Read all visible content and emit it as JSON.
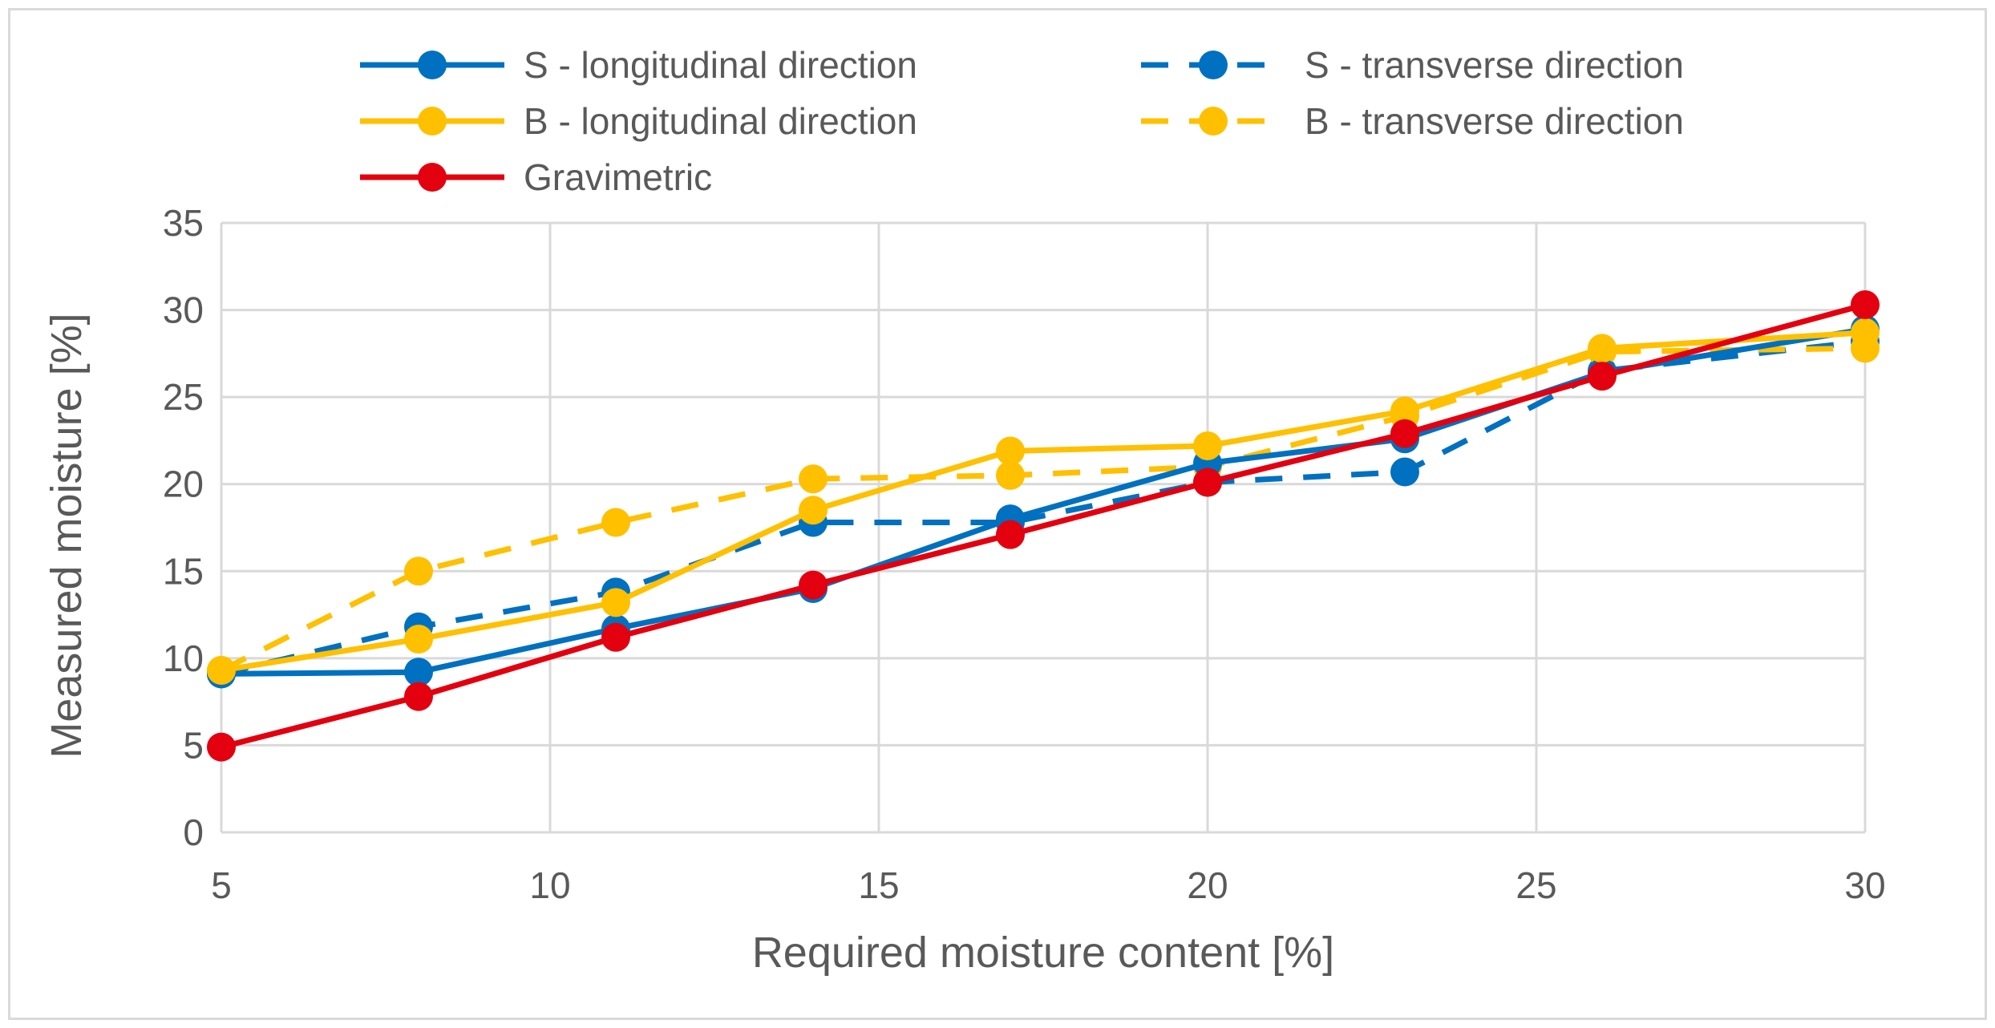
{
  "chart_data": {
    "type": "line",
    "title": "",
    "xlabel": "Required moisture content [%]",
    "ylabel": "Measured moisture [%]",
    "xlim": [
      5,
      30
    ],
    "ylim": [
      0,
      35
    ],
    "xticks": [
      5,
      10,
      15,
      20,
      25,
      30
    ],
    "yticks": [
      0,
      5,
      10,
      15,
      20,
      25,
      30,
      35
    ],
    "grid": true,
    "legend_position": "top",
    "series": [
      {
        "name": "S - longitudinal direction",
        "color": "#0070C0",
        "dash": "solid",
        "x": [
          5,
          8,
          11,
          14,
          17,
          20,
          23,
          26,
          30
        ],
        "y": [
          9.1,
          9.2,
          11.7,
          14.0,
          18.0,
          21.2,
          22.6,
          26.4,
          28.9
        ]
      },
      {
        "name": "S - transverse direction",
        "color": "#0070C0",
        "dash": "dashed",
        "x": [
          5,
          8,
          11,
          14,
          17,
          20,
          23,
          26,
          30
        ],
        "y": [
          9.1,
          11.8,
          13.8,
          17.8,
          17.8,
          20.1,
          20.7,
          26.5,
          28.2
        ]
      },
      {
        "name": "B - longitudinal direction",
        "color": "#FFC000",
        "dash": "solid",
        "x": [
          5,
          8,
          11,
          14,
          17,
          20,
          23,
          26,
          30
        ],
        "y": [
          9.3,
          11.1,
          13.2,
          18.5,
          21.9,
          22.2,
          24.2,
          27.8,
          28.7
        ]
      },
      {
        "name": "B - transverse direction",
        "color": "#FFC000",
        "dash": "dashed",
        "x": [
          5,
          8,
          11,
          14,
          17,
          20,
          23,
          26,
          30
        ],
        "y": [
          9.3,
          15.0,
          17.8,
          20.3,
          20.5,
          21.0,
          23.9,
          27.6,
          27.8
        ]
      },
      {
        "name": "Gravimetric",
        "color": "#E3000F",
        "dash": "solid",
        "x": [
          5,
          8,
          11,
          14,
          17,
          20,
          23,
          26,
          30
        ],
        "y": [
          4.9,
          7.8,
          11.2,
          14.2,
          17.1,
          20.1,
          22.9,
          26.2,
          30.3
        ]
      }
    ]
  }
}
